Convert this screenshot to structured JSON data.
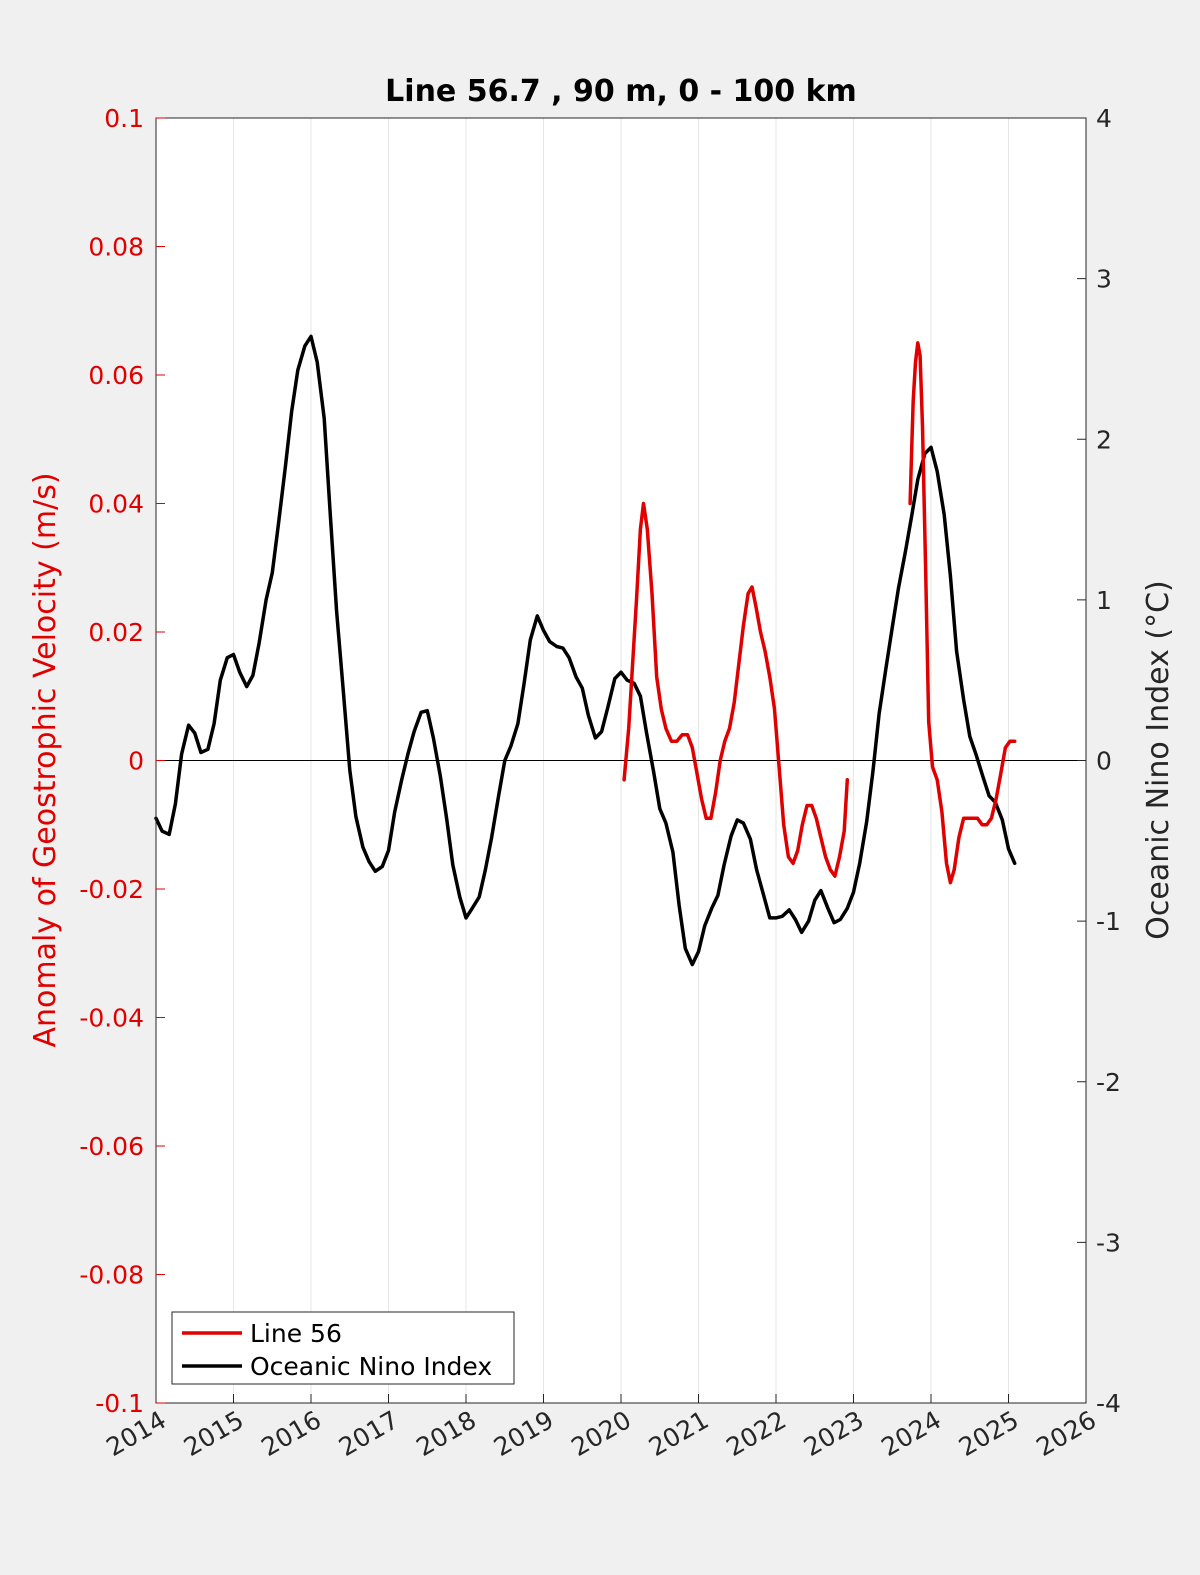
{
  "chart_data": {
    "type": "line",
    "title": "Line 56.7 , 90 m, 0 - 100 km",
    "ylabel_left": "Anomaly of Geostrophic Velocity (m/s)",
    "ylabel_right": "Oceanic Nino Index (°C)",
    "xlabel": "",
    "xlim": [
      2014,
      2026
    ],
    "ylim_left": [
      -0.1,
      0.1
    ],
    "ylim_right": [
      -4,
      4
    ],
    "x_ticks": [
      "2014",
      "2015",
      "2016",
      "2017",
      "2018",
      "2019",
      "2020",
      "2021",
      "2022",
      "2023",
      "2024",
      "2025",
      "2026"
    ],
    "y_ticks_left": [
      "-0.1",
      "-0.08",
      "-0.06",
      "-0.04",
      "-0.02",
      "0",
      "0.02",
      "0.04",
      "0.06",
      "0.08",
      "0.1"
    ],
    "y_ticks_right": [
      "-4",
      "-3",
      "-2",
      "-1",
      "0",
      "1",
      "2",
      "3",
      "4"
    ],
    "grid": "vertical",
    "legend_position": "bottom-left",
    "colors": {
      "line56": "#e00000",
      "oni": "#000000",
      "zero_line": "#000000",
      "grid": "#e6e6e6"
    },
    "series": [
      {
        "name": "Line 56",
        "axis": "left",
        "points": [
          [
            2020.04,
            -0.003
          ],
          [
            2020.1,
            0.005
          ],
          [
            2020.15,
            0.015
          ],
          [
            2020.2,
            0.025
          ],
          [
            2020.25,
            0.036
          ],
          [
            2020.29,
            0.04
          ],
          [
            2020.34,
            0.036
          ],
          [
            2020.4,
            0.026
          ],
          [
            2020.46,
            0.013
          ],
          [
            2020.52,
            0.008
          ],
          [
            2020.58,
            0.005
          ],
          [
            2020.65,
            0.003
          ],
          [
            2020.72,
            0.003
          ],
          [
            2020.79,
            0.004
          ],
          [
            2020.86,
            0.004
          ],
          [
            2020.92,
            0.002
          ],
          [
            2020.98,
            -0.002
          ],
          [
            2021.04,
            -0.006
          ],
          [
            2021.1,
            -0.009
          ],
          [
            2021.16,
            -0.009
          ],
          [
            2021.22,
            -0.005
          ],
          [
            2021.28,
            0.0
          ],
          [
            2021.34,
            0.003
          ],
          [
            2021.4,
            0.005
          ],
          [
            2021.46,
            0.009
          ],
          [
            2021.52,
            0.015
          ],
          [
            2021.58,
            0.021
          ],
          [
            2021.64,
            0.026
          ],
          [
            2021.69,
            0.027
          ],
          [
            2021.74,
            0.024
          ],
          [
            2021.8,
            0.02
          ],
          [
            2021.86,
            0.017
          ],
          [
            2021.92,
            0.013
          ],
          [
            2021.98,
            0.008
          ],
          [
            2022.04,
            -0.001
          ],
          [
            2022.1,
            -0.01
          ],
          [
            2022.16,
            -0.015
          ],
          [
            2022.22,
            -0.016
          ],
          [
            2022.28,
            -0.014
          ],
          [
            2022.34,
            -0.01
          ],
          [
            2022.4,
            -0.007
          ],
          [
            2022.46,
            -0.007
          ],
          [
            2022.52,
            -0.009
          ],
          [
            2022.58,
            -0.012
          ],
          [
            2022.64,
            -0.015
          ],
          [
            2022.7,
            -0.017
          ],
          [
            2022.76,
            -0.018
          ],
          [
            2022.82,
            -0.015
          ],
          [
            2022.88,
            -0.011
          ],
          [
            2022.92,
            -0.003
          ],
          null,
          [
            2023.73,
            0.04
          ],
          [
            2023.75,
            0.048
          ],
          [
            2023.77,
            0.056
          ],
          [
            2023.8,
            0.062
          ],
          [
            2023.83,
            0.065
          ],
          [
            2023.86,
            0.063
          ],
          [
            2023.89,
            0.052
          ],
          [
            2023.93,
            0.03
          ],
          [
            2023.97,
            0.006
          ],
          [
            2024.02,
            -0.001
          ],
          [
            2024.08,
            -0.003
          ],
          [
            2024.14,
            -0.008
          ],
          [
            2024.2,
            -0.016
          ],
          [
            2024.25,
            -0.019
          ],
          [
            2024.3,
            -0.017
          ],
          [
            2024.36,
            -0.012
          ],
          [
            2024.42,
            -0.009
          ],
          [
            2024.48,
            -0.009
          ],
          [
            2024.54,
            -0.009
          ],
          [
            2024.6,
            -0.009
          ],
          [
            2024.66,
            -0.01
          ],
          [
            2024.72,
            -0.01
          ],
          [
            2024.78,
            -0.009
          ],
          [
            2024.84,
            -0.006
          ],
          [
            2024.9,
            -0.002
          ],
          [
            2024.96,
            0.002
          ],
          [
            2025.02,
            0.003
          ],
          [
            2025.08,
            0.003
          ]
        ]
      },
      {
        "name": "Oceanic Nino Index",
        "axis": "right",
        "points": [
          [
            2014.0,
            -0.36
          ],
          [
            2014.08,
            -0.44
          ],
          [
            2014.17,
            -0.46
          ],
          [
            2014.25,
            -0.27
          ],
          [
            2014.33,
            0.04
          ],
          [
            2014.42,
            0.22
          ],
          [
            2014.5,
            0.17
          ],
          [
            2014.58,
            0.05
          ],
          [
            2014.67,
            0.07
          ],
          [
            2014.75,
            0.23
          ],
          [
            2014.83,
            0.5
          ],
          [
            2014.92,
            0.64
          ],
          [
            2015.0,
            0.66
          ],
          [
            2015.08,
            0.55
          ],
          [
            2015.17,
            0.46
          ],
          [
            2015.25,
            0.53
          ],
          [
            2015.33,
            0.73
          ],
          [
            2015.42,
            1.0
          ],
          [
            2015.5,
            1.17
          ],
          [
            2015.58,
            1.47
          ],
          [
            2015.67,
            1.83
          ],
          [
            2015.75,
            2.17
          ],
          [
            2015.83,
            2.43
          ],
          [
            2015.92,
            2.58
          ],
          [
            2016.0,
            2.64
          ],
          [
            2016.08,
            2.48
          ],
          [
            2016.17,
            2.13
          ],
          [
            2016.25,
            1.52
          ],
          [
            2016.33,
            0.93
          ],
          [
            2016.42,
            0.41
          ],
          [
            2016.5,
            -0.06
          ],
          [
            2016.58,
            -0.35
          ],
          [
            2016.67,
            -0.54
          ],
          [
            2016.75,
            -0.63
          ],
          [
            2016.83,
            -0.69
          ],
          [
            2016.92,
            -0.66
          ],
          [
            2017.0,
            -0.56
          ],
          [
            2017.08,
            -0.32
          ],
          [
            2017.17,
            -0.12
          ],
          [
            2017.25,
            0.04
          ],
          [
            2017.33,
            0.18
          ],
          [
            2017.42,
            0.3
          ],
          [
            2017.5,
            0.31
          ],
          [
            2017.58,
            0.14
          ],
          [
            2017.67,
            -0.1
          ],
          [
            2017.75,
            -0.36
          ],
          [
            2017.83,
            -0.65
          ],
          [
            2017.92,
            -0.85
          ],
          [
            2018.0,
            -0.98
          ],
          [
            2018.08,
            -0.92
          ],
          [
            2018.17,
            -0.85
          ],
          [
            2018.25,
            -0.68
          ],
          [
            2018.33,
            -0.48
          ],
          [
            2018.42,
            -0.22
          ],
          [
            2018.5,
            0.0
          ],
          [
            2018.58,
            0.09
          ],
          [
            2018.67,
            0.23
          ],
          [
            2018.75,
            0.48
          ],
          [
            2018.83,
            0.75
          ],
          [
            2018.92,
            0.9
          ],
          [
            2019.0,
            0.81
          ],
          [
            2019.08,
            0.74
          ],
          [
            2019.17,
            0.71
          ],
          [
            2019.25,
            0.7
          ],
          [
            2019.33,
            0.64
          ],
          [
            2019.42,
            0.52
          ],
          [
            2019.5,
            0.45
          ],
          [
            2019.58,
            0.28
          ],
          [
            2019.67,
            0.14
          ],
          [
            2019.75,
            0.18
          ],
          [
            2019.83,
            0.33
          ],
          [
            2019.92,
            0.51
          ],
          [
            2020.0,
            0.55
          ],
          [
            2020.08,
            0.5
          ],
          [
            2020.17,
            0.48
          ],
          [
            2020.25,
            0.4
          ],
          [
            2020.33,
            0.17
          ],
          [
            2020.42,
            -0.07
          ],
          [
            2020.5,
            -0.3
          ],
          [
            2020.58,
            -0.39
          ],
          [
            2020.67,
            -0.57
          ],
          [
            2020.75,
            -0.9
          ],
          [
            2020.83,
            -1.17
          ],
          [
            2020.92,
            -1.27
          ],
          [
            2021.0,
            -1.19
          ],
          [
            2021.08,
            -1.03
          ],
          [
            2021.17,
            -0.92
          ],
          [
            2021.25,
            -0.84
          ],
          [
            2021.33,
            -0.65
          ],
          [
            2021.42,
            -0.47
          ],
          [
            2021.5,
            -0.37
          ],
          [
            2021.58,
            -0.39
          ],
          [
            2021.67,
            -0.49
          ],
          [
            2021.75,
            -0.68
          ],
          [
            2021.83,
            -0.82
          ],
          [
            2021.92,
            -0.98
          ],
          [
            2022.0,
            -0.98
          ],
          [
            2022.08,
            -0.97
          ],
          [
            2022.17,
            -0.93
          ],
          [
            2022.25,
            -0.99
          ],
          [
            2022.33,
            -1.07
          ],
          [
            2022.42,
            -1.0
          ],
          [
            2022.5,
            -0.87
          ],
          [
            2022.58,
            -0.81
          ],
          [
            2022.67,
            -0.92
          ],
          [
            2022.75,
            -1.01
          ],
          [
            2022.83,
            -0.99
          ],
          [
            2022.92,
            -0.92
          ],
          [
            2023.0,
            -0.82
          ],
          [
            2023.08,
            -0.64
          ],
          [
            2023.17,
            -0.38
          ],
          [
            2023.25,
            -0.07
          ],
          [
            2023.33,
            0.29
          ],
          [
            2023.42,
            0.58
          ],
          [
            2023.5,
            0.83
          ],
          [
            2023.58,
            1.07
          ],
          [
            2023.67,
            1.3
          ],
          [
            2023.75,
            1.52
          ],
          [
            2023.83,
            1.75
          ],
          [
            2023.92,
            1.91
          ],
          [
            2024.0,
            1.95
          ],
          [
            2024.08,
            1.8
          ],
          [
            2024.17,
            1.53
          ],
          [
            2024.25,
            1.15
          ],
          [
            2024.33,
            0.68
          ],
          [
            2024.42,
            0.38
          ],
          [
            2024.5,
            0.15
          ],
          [
            2024.58,
            0.04
          ],
          [
            2024.67,
            -0.1
          ],
          [
            2024.75,
            -0.22
          ],
          [
            2024.83,
            -0.26
          ],
          [
            2024.92,
            -0.37
          ],
          [
            2025.0,
            -0.55
          ],
          [
            2025.08,
            -0.64
          ]
        ]
      }
    ]
  }
}
